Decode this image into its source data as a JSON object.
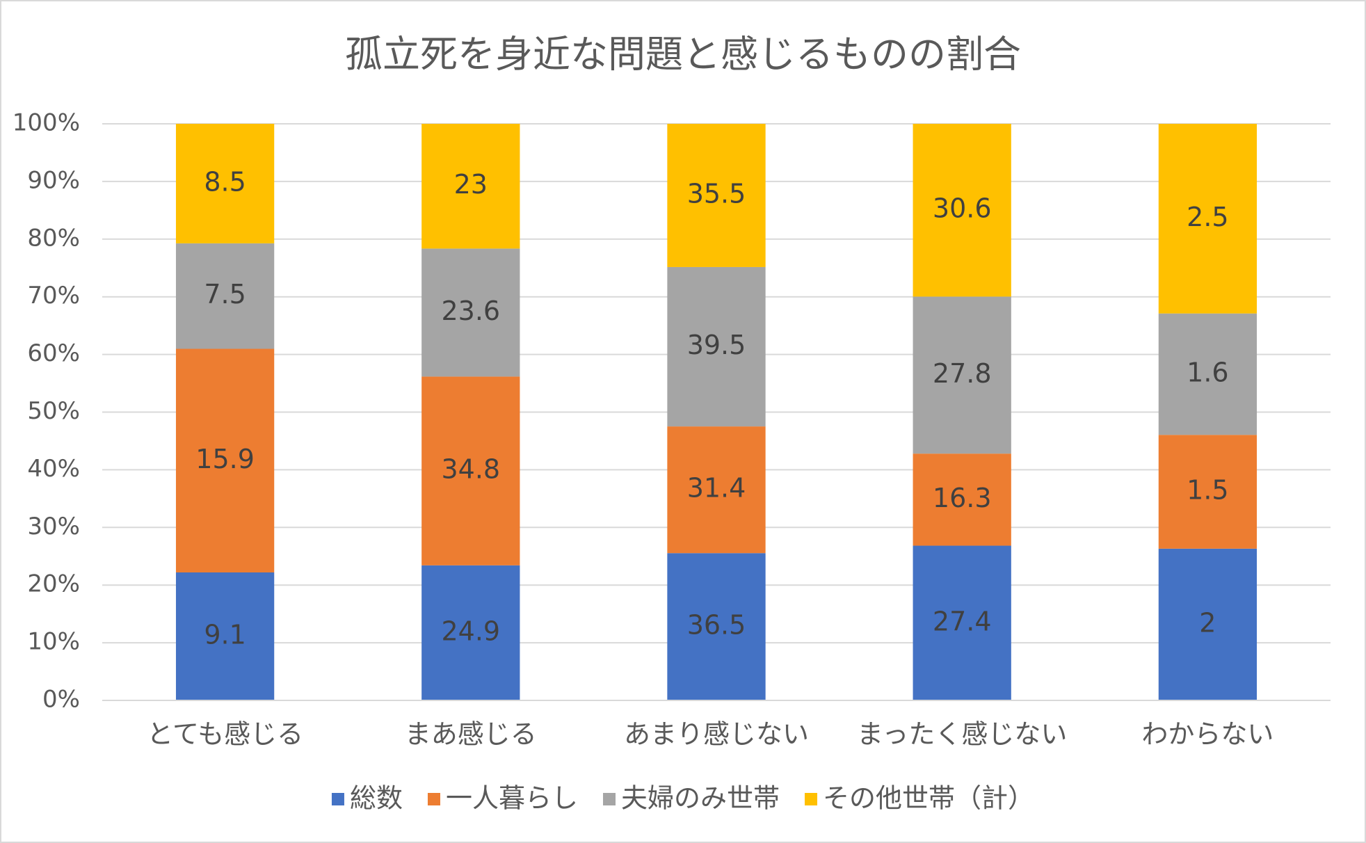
{
  "chart_data": {
    "type": "bar",
    "stacking": "percent",
    "title": "孤立死を身近な問題と感じるものの割合",
    "categories": [
      "とても感じる",
      "まあ感じる",
      "あまり感じない",
      "まったく感じない",
      "わからない"
    ],
    "series": [
      {
        "name": "総数",
        "color": "#4472c4",
        "values": [
          9.1,
          24.9,
          36.5,
          27.4,
          2
        ]
      },
      {
        "name": "一人暮らし",
        "color": "#ed7d31",
        "values": [
          15.9,
          34.8,
          31.4,
          16.3,
          1.5
        ]
      },
      {
        "name": "夫婦のみ世帯",
        "color": "#a5a5a5",
        "values": [
          7.5,
          23.6,
          39.5,
          27.8,
          1.6
        ]
      },
      {
        "name": "その他世帯（計）",
        "color": "#ffc000",
        "values": [
          8.5,
          23,
          35.5,
          30.6,
          2.5
        ]
      }
    ],
    "ylim": [
      0,
      100
    ],
    "yticks": [
      {
        "value": 0,
        "label": "0%"
      },
      {
        "value": 10,
        "label": "10%"
      },
      {
        "value": 20,
        "label": "20%"
      },
      {
        "value": 30,
        "label": "30%"
      },
      {
        "value": 40,
        "label": "40%"
      },
      {
        "value": 50,
        "label": "50%"
      },
      {
        "value": 60,
        "label": "60%"
      },
      {
        "value": 70,
        "label": "70%"
      },
      {
        "value": 80,
        "label": "80%"
      },
      {
        "value": 90,
        "label": "90%"
      },
      {
        "value": 100,
        "label": "100%"
      }
    ],
    "grid": true,
    "legend": "bottom"
  }
}
